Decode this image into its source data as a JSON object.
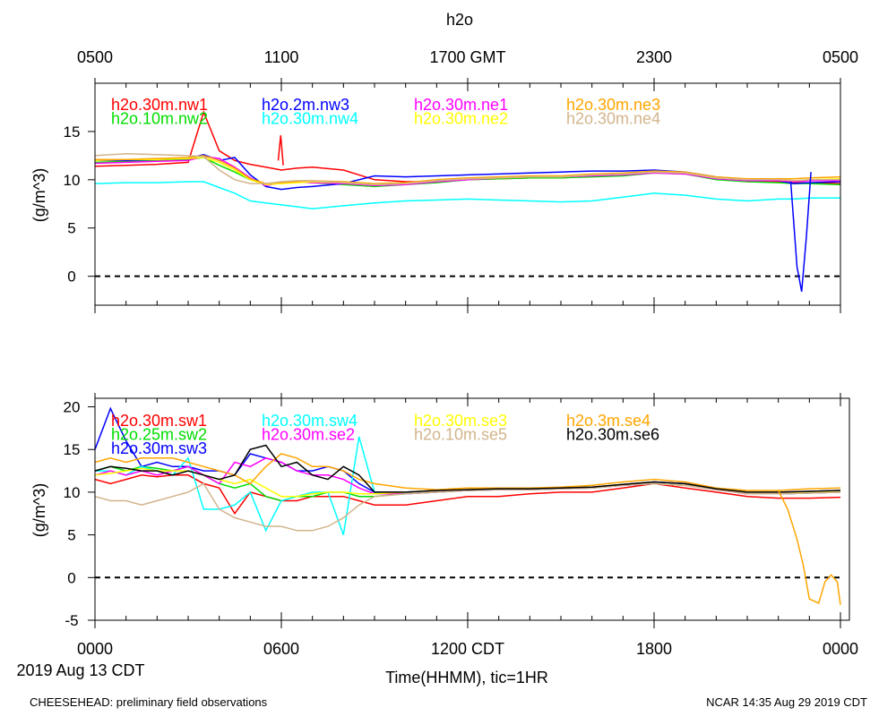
{
  "title": "h2o",
  "top_axis_ticks": [
    "0500",
    "1100",
    "1700 GMT",
    "2300",
    "0500"
  ],
  "bottom_axis_ticks": [
    "0000",
    "0600",
    "1200 CDT",
    "1800",
    "0000"
  ],
  "date_label": "2019 Aug 13 CDT",
  "xlabel": "Time(HHMM), tic=1HR",
  "footer_left": "CHEESEHEAD: preliminary field observations",
  "footer_right": "NCAR 14:35 Aug 29 2019 CDT",
  "chart_data": [
    {
      "type": "line",
      "panel": "top",
      "ylabel": "(g/m^3)",
      "x_unit": "hours since 0000 CDT",
      "xlim": [
        0,
        24
      ],
      "ylim": [
        -3,
        20
      ],
      "yticks": [
        0,
        5,
        10,
        15
      ],
      "reference_line": 0,
      "x": [
        0,
        1,
        2,
        3,
        3.5,
        4,
        4.5,
        5,
        5.5,
        6,
        6.5,
        7,
        8,
        9,
        10,
        11,
        12,
        13,
        14,
        15,
        16,
        17,
        18,
        19,
        20,
        21,
        22,
        22.5,
        23,
        24
      ],
      "series": [
        {
          "name": "h2o.30m.nw1",
          "color": "#ff0000",
          "values": [
            11.4,
            11.5,
            11.6,
            11.8,
            17.0,
            13.0,
            12.0,
            11.6,
            11.3,
            11.0,
            11.2,
            11.3,
            11.0,
            10.0,
            9.8,
            9.8,
            10.0,
            10.1,
            10.2,
            10.2,
            10.4,
            10.5,
            10.8,
            10.7,
            10.1,
            9.8,
            9.8,
            9.7,
            9.7,
            9.6
          ]
        },
        {
          "name": "h2o.10m.nw2",
          "color": "#00dd00",
          "values": [
            11.8,
            11.9,
            12.0,
            12.1,
            12.3,
            11.5,
            10.8,
            10.0,
            9.5,
            9.7,
            9.8,
            9.7,
            9.5,
            9.3,
            9.5,
            9.7,
            10.0,
            10.1,
            10.2,
            10.2,
            10.3,
            10.4,
            10.7,
            10.6,
            10.0,
            9.8,
            9.7,
            9.6,
            9.6,
            9.5
          ]
        },
        {
          "name": "h2o.2m.nw3",
          "color": "#0000ff",
          "values": [
            12.0,
            12.0,
            12.1,
            12.2,
            12.6,
            12.0,
            12.3,
            10.5,
            9.3,
            9.0,
            9.2,
            9.3,
            9.6,
            10.4,
            10.3,
            10.4,
            10.5,
            10.6,
            10.7,
            10.8,
            10.9,
            10.9,
            11.0,
            10.8,
            10.3,
            10.0,
            9.9,
            9.6,
            9.7,
            9.8
          ]
        },
        {
          "name": "h2o.30m.nw4",
          "color": "#00ffff",
          "values": [
            9.6,
            9.7,
            9.7,
            9.8,
            9.8,
            9.2,
            8.6,
            7.8,
            7.6,
            7.4,
            7.2,
            7.0,
            7.3,
            7.6,
            7.8,
            7.9,
            8.0,
            7.9,
            7.8,
            7.7,
            7.8,
            8.2,
            8.6,
            8.4,
            8.0,
            7.8,
            8.0,
            8.0,
            8.1,
            8.1
          ]
        },
        {
          "name": "h2o.30m.ne1",
          "color": "#ff00ff",
          "values": [
            11.7,
            11.8,
            11.9,
            12.0,
            12.4,
            12.2,
            11.3,
            10.2,
            9.4,
            9.7,
            9.8,
            9.7,
            9.6,
            9.4,
            9.5,
            9.8,
            10.0,
            10.2,
            10.3,
            10.3,
            10.4,
            10.5,
            10.7,
            10.6,
            10.1,
            9.9,
            9.9,
            9.8,
            9.9,
            9.9
          ]
        },
        {
          "name": "h2o.30m.ne2",
          "color": "#ffff00",
          "values": [
            12.0,
            12.1,
            12.1,
            12.2,
            12.3,
            11.8,
            11.0,
            10.0,
            9.5,
            9.6,
            9.7,
            9.8,
            9.7,
            9.5,
            9.6,
            9.9,
            10.1,
            10.2,
            10.3,
            10.3,
            10.5,
            10.6,
            10.8,
            10.7,
            10.2,
            10.0,
            10.0,
            9.9,
            10.0,
            10.1
          ]
        },
        {
          "name": "h2o.30m.ne3",
          "color": "#ffa500",
          "values": [
            12.1,
            12.1,
            12.2,
            12.3,
            12.5,
            12.0,
            11.2,
            10.1,
            9.6,
            9.7,
            9.8,
            9.9,
            9.8,
            9.6,
            9.7,
            10.0,
            10.2,
            10.3,
            10.4,
            10.4,
            10.6,
            10.7,
            10.9,
            10.8,
            10.3,
            10.1,
            10.1,
            10.1,
            10.2,
            10.3
          ]
        },
        {
          "name": "h2o.30m.ne4",
          "color": "#d2b48c",
          "values": [
            12.5,
            12.7,
            12.6,
            12.5,
            12.4,
            11.0,
            10.0,
            9.6,
            9.6,
            9.8,
            9.9,
            9.9,
            9.7,
            9.5,
            9.6,
            9.9,
            10.1,
            10.2,
            10.3,
            10.3,
            10.5,
            10.6,
            10.8,
            10.7,
            10.2,
            10.0,
            10.0,
            9.9,
            10.0,
            10.0
          ]
        }
      ],
      "spikes": [
        {
          "series": "h2o.2m.nw3",
          "x": [
            22.4,
            22.6,
            22.75,
            22.9,
            23.05
          ],
          "values": [
            9.8,
            1.0,
            -1.6,
            4.0,
            10.8
          ]
        },
        {
          "series": "h2o.30m.nw1",
          "x": [
            5.9,
            5.98,
            6.06
          ],
          "values": [
            12.0,
            14.6,
            11.5
          ]
        }
      ]
    },
    {
      "type": "line",
      "panel": "bottom",
      "ylabel": "(g/m^3)",
      "x_unit": "hours since 0000 CDT",
      "xlim": [
        0,
        24
      ],
      "ylim": [
        -5,
        21
      ],
      "yticks": [
        -5,
        0,
        5,
        10,
        15,
        20
      ],
      "reference_line": 0,
      "x": [
        0,
        0.5,
        1,
        1.5,
        2,
        2.5,
        3,
        3.5,
        4,
        4.5,
        5,
        5.5,
        6,
        6.5,
        7,
        7.5,
        8,
        8.5,
        9,
        10,
        11,
        12,
        13,
        14,
        15,
        16,
        17,
        18,
        19,
        20,
        21,
        22,
        23,
        24
      ],
      "series": [
        {
          "name": "h2o.30m.sw1",
          "color": "#ff0000",
          "values": [
            11.5,
            11.0,
            11.5,
            12.0,
            11.8,
            12.0,
            12.0,
            11.0,
            10.5,
            7.5,
            10.0,
            9.5,
            9.0,
            9.0,
            9.5,
            9.5,
            9.5,
            9.0,
            8.5,
            8.5,
            9.0,
            9.5,
            9.5,
            9.8,
            10.0,
            10.0,
            10.5,
            11.0,
            10.5,
            10.0,
            9.5,
            9.3,
            9.3,
            9.4
          ]
        },
        {
          "name": "h2o.25m.sw2",
          "color": "#00dd00",
          "values": [
            12.5,
            13.0,
            12.5,
            13.0,
            12.8,
            12.5,
            13.0,
            12.0,
            11.0,
            10.5,
            11.0,
            9.5,
            9.0,
            9.5,
            9.5,
            10.0,
            10.0,
            9.5,
            9.5,
            9.8,
            10.0,
            10.2,
            10.3,
            10.3,
            10.4,
            10.5,
            10.8,
            11.0,
            10.8,
            10.3,
            9.8,
            9.8,
            9.9,
            10.0
          ]
        },
        {
          "name": "h2o.30m.sw3",
          "color": "#0000ff",
          "values": [
            15.0,
            19.8,
            16.0,
            13.0,
            13.5,
            13.0,
            13.0,
            12.5,
            12.5,
            12.0,
            14.5,
            14.0,
            13.5,
            12.5,
            12.5,
            13.0,
            12.5,
            11.0,
            10.0,
            10.0,
            10.2,
            10.3,
            10.4,
            10.4,
            10.5,
            10.6,
            10.9,
            11.2,
            11.0,
            10.4,
            10.0,
            10.0,
            10.1,
            10.2
          ]
        },
        {
          "name": "h2o.30m.sw4",
          "color": "#00ffff",
          "values": [
            12.5,
            12.5,
            12.0,
            13.0,
            12.5,
            12.0,
            14.0,
            8.0,
            8.0,
            8.5,
            10.0,
            5.5,
            9.0,
            9.5,
            10.0,
            10.0,
            5.0,
            16.5,
            10.0,
            9.8,
            10.0,
            10.2,
            10.3,
            10.3,
            10.4,
            10.5,
            10.8,
            11.0,
            10.8,
            10.3,
            9.8,
            9.8,
            9.9,
            10.0
          ]
        },
        {
          "name": "h2o.30m.se2",
          "color": "#ff00ff",
          "values": [
            12.0,
            12.5,
            12.0,
            12.5,
            12.0,
            12.5,
            13.0,
            12.0,
            11.0,
            13.5,
            13.0,
            14.0,
            13.5,
            12.5,
            12.0,
            12.0,
            11.5,
            10.5,
            9.8,
            9.8,
            10.0,
            10.2,
            10.3,
            10.3,
            10.4,
            10.5,
            10.8,
            11.0,
            10.8,
            10.3,
            9.8,
            9.8,
            9.9,
            10.0
          ]
        },
        {
          "name": "h2o.30m.se3",
          "color": "#ffff00",
          "values": [
            12.0,
            12.2,
            12.5,
            12.8,
            12.5,
            12.5,
            12.5,
            12.0,
            11.5,
            11.0,
            11.5,
            10.5,
            9.5,
            9.5,
            9.8,
            10.0,
            10.0,
            9.8,
            9.8,
            10.0,
            10.2,
            10.3,
            10.4,
            10.4,
            10.5,
            10.6,
            10.9,
            11.0,
            10.8,
            10.4,
            10.0,
            10.0,
            10.0,
            10.1
          ]
        },
        {
          "name": "h2o.10m.se5",
          "color": "#d2b48c",
          "values": [
            9.5,
            9.0,
            9.0,
            8.5,
            9.0,
            9.5,
            10.0,
            11.0,
            8.0,
            7.0,
            6.5,
            6.0,
            6.0,
            5.5,
            5.5,
            6.0,
            7.0,
            8.5,
            9.5,
            9.8,
            10.0,
            10.2,
            10.3,
            10.3,
            10.4,
            10.5,
            10.8,
            11.0,
            10.8,
            10.3,
            9.8,
            9.8,
            9.9,
            10.0
          ]
        },
        {
          "name": "h2o.3m.se4",
          "color": "#ffa500",
          "values": [
            13.5,
            14.0,
            13.5,
            14.0,
            14.0,
            14.0,
            13.5,
            13.0,
            12.5,
            12.0,
            11.0,
            13.0,
            14.5,
            14.0,
            13.0,
            13.0,
            12.5,
            11.5,
            11.0,
            10.5,
            10.3,
            10.5,
            10.5,
            10.5,
            10.6,
            10.8,
            11.2,
            11.5,
            11.2,
            10.5,
            10.2,
            10.2,
            10.4,
            10.5
          ]
        },
        {
          "name": "h2o.30m.se6",
          "color": "#000000",
          "values": [
            12.5,
            13.0,
            12.8,
            12.5,
            12.5,
            12.0,
            12.5,
            12.0,
            11.5,
            12.0,
            15.0,
            15.5,
            13.0,
            13.5,
            12.0,
            11.5,
            13.0,
            12.0,
            10.0,
            10.0,
            10.2,
            10.3,
            10.4,
            10.4,
            10.5,
            10.6,
            10.9,
            11.2,
            11.0,
            10.4,
            10.0,
            10.0,
            10.1,
            10.2
          ]
        }
      ],
      "spikes": [
        {
          "series": "h2o.3m.se4",
          "x": [
            22.0,
            22.3,
            22.6,
            22.8,
            23.0,
            23.3,
            23.5,
            23.7,
            23.9,
            24.0
          ],
          "values": [
            10.2,
            8.0,
            4.5,
            1.5,
            -2.5,
            -3.0,
            -0.5,
            0.3,
            -0.5,
            -3.2
          ]
        }
      ]
    }
  ]
}
